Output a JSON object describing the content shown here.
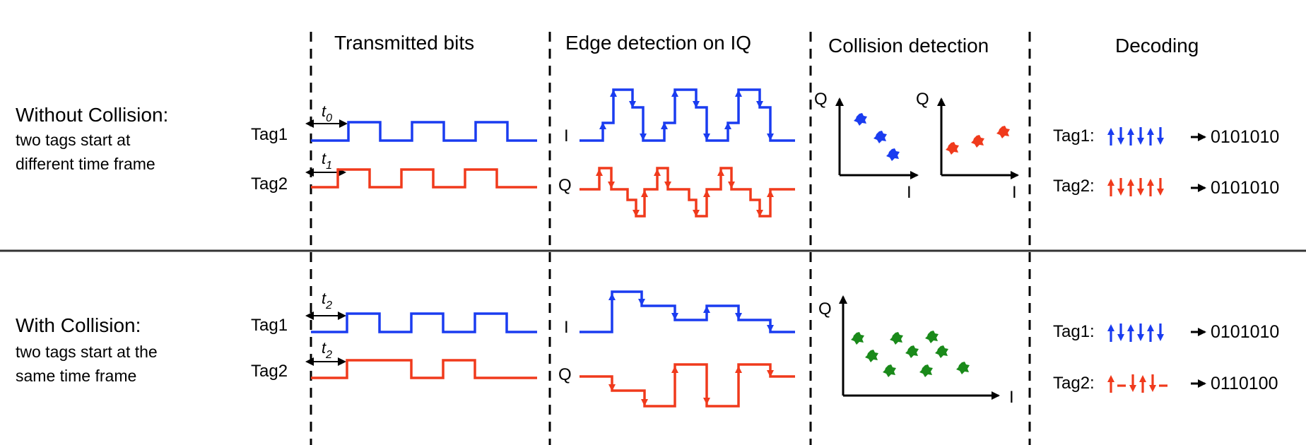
{
  "headers": {
    "transmitted_bits": "Transmitted bits",
    "edge_detection": "Edge detection on IQ",
    "collision_detection": "Collision detection",
    "decoding": "Decoding"
  },
  "row_top": {
    "title": "Without Collision:",
    "desc_line1": "two tags start at",
    "desc_line2": "different time frame",
    "tag1_label": "Tag1",
    "tag2_label": "Tag2",
    "t_tag1": "t",
    "t_tag1_sub": "0",
    "t_tag2": "t",
    "t_tag2_sub": "1",
    "iq_i": "I",
    "iq_q": "Q",
    "axis_q": "Q",
    "axis_i": "I",
    "decode_tag1": "Tag1:",
    "decode_tag2": "Tag2:",
    "decode_tag1_bits": "0101010",
    "decode_tag2_bits": "0101010"
  },
  "row_bottom": {
    "title": "With Collision:",
    "desc_line1": "two tags start at the",
    "desc_line2": "same time frame",
    "tag1_label": "Tag1",
    "tag2_label": "Tag2",
    "t_tag1": "t",
    "t_tag1_sub": "2",
    "t_tag2": "t",
    "t_tag2_sub": "2",
    "iq_i": "I",
    "iq_q": "Q",
    "axis_q": "Q",
    "axis_i": "I",
    "decode_tag1": "Tag1:",
    "decode_tag2": "Tag2:",
    "decode_tag1_bits": "0101010",
    "decode_tag2_bits": "0110100"
  },
  "colors": {
    "tag1": "#1a3cf0",
    "tag2": "#f03a1c",
    "collision": "#1a8a1a",
    "line": "#000000"
  }
}
